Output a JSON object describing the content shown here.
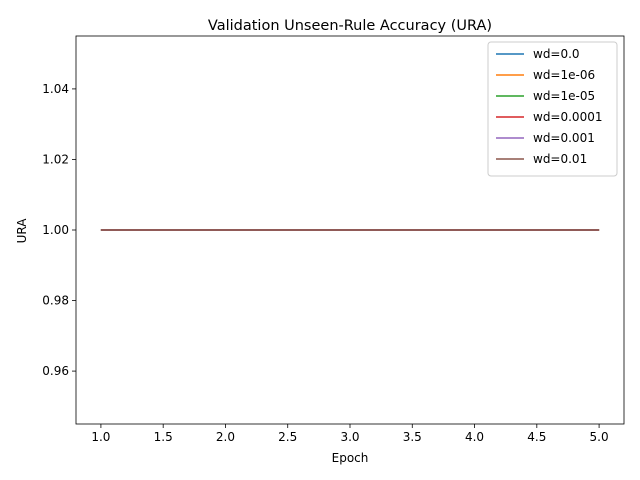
{
  "chart_data": {
    "type": "line",
    "title": "Validation Unseen-Rule Accuracy (URA)",
    "xlabel": "Epoch",
    "ylabel": "URA",
    "xlim": [
      0.8,
      5.2
    ],
    "ylim": [
      0.945,
      1.055
    ],
    "xticks": [
      1.0,
      1.5,
      2.0,
      2.5,
      3.0,
      3.5,
      4.0,
      4.5,
      5.0
    ],
    "xtick_labels": [
      "1.0",
      "1.5",
      "2.0",
      "2.5",
      "3.0",
      "3.5",
      "4.0",
      "4.5",
      "5.0"
    ],
    "yticks": [
      0.96,
      0.98,
      1.0,
      1.02,
      1.04
    ],
    "ytick_labels": [
      "0.96",
      "0.98",
      "1.00",
      "1.02",
      "1.04"
    ],
    "x": [
      1,
      2,
      3,
      4,
      5
    ],
    "legend_position": "upper right",
    "grid": false,
    "series": [
      {
        "name": "wd=0.0",
        "color": "#1f77b4",
        "values": [
          1.0,
          1.0,
          1.0,
          1.0,
          1.0
        ]
      },
      {
        "name": "wd=1e-06",
        "color": "#ff7f0e",
        "values": [
          1.0,
          1.0,
          1.0,
          1.0,
          1.0
        ]
      },
      {
        "name": "wd=1e-05",
        "color": "#2ca02c",
        "values": [
          1.0,
          1.0,
          1.0,
          1.0,
          1.0
        ]
      },
      {
        "name": "wd=0.0001",
        "color": "#d62728",
        "values": [
          1.0,
          1.0,
          1.0,
          1.0,
          1.0
        ]
      },
      {
        "name": "wd=0.001",
        "color": "#9467bd",
        "values": [
          1.0,
          1.0,
          1.0,
          1.0,
          1.0
        ]
      },
      {
        "name": "wd=0.01",
        "color": "#8c564b",
        "values": [
          1.0,
          1.0,
          1.0,
          1.0,
          1.0
        ]
      }
    ]
  }
}
